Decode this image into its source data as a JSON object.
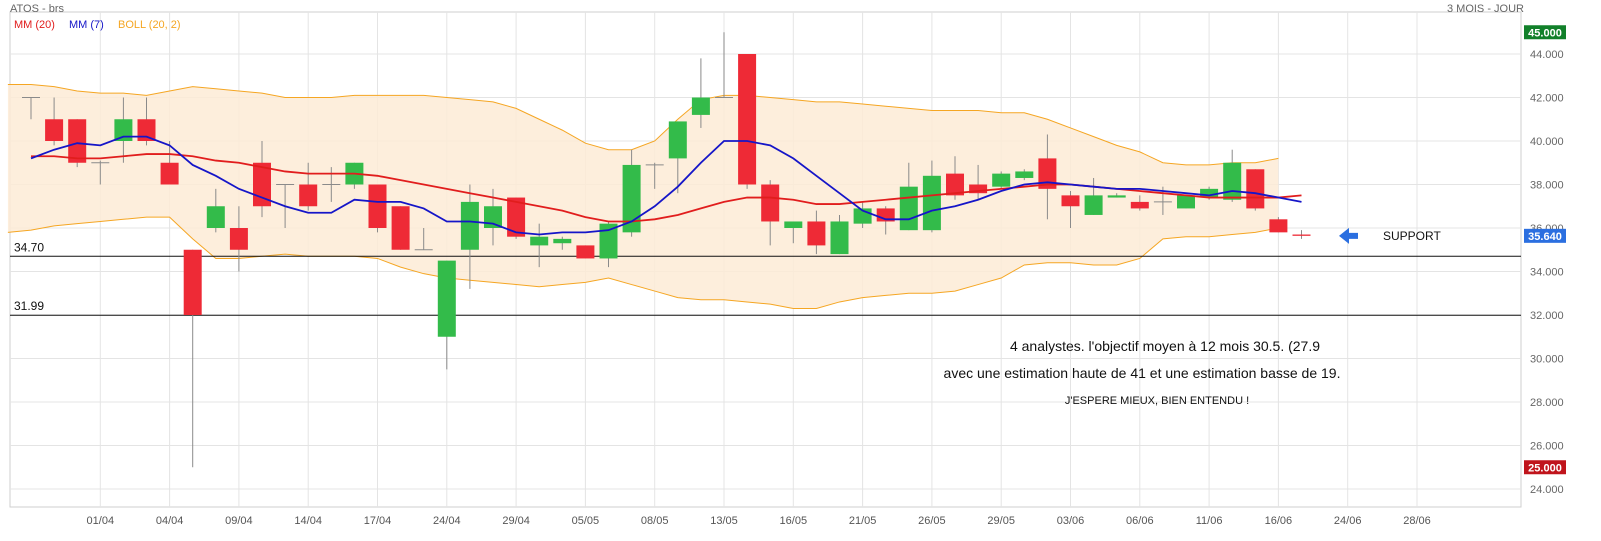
{
  "header": {
    "symbol": "ATOS - brs",
    "period": "3 MOIS - JOUR"
  },
  "legend": [
    {
      "label": "MM (20)",
      "color": "#e11d1d"
    },
    {
      "label": "MM (7)",
      "color": "#1515c8"
    },
    {
      "label": "BOLL (20, 2)",
      "color": "#f5a623"
    }
  ],
  "colors": {
    "up": "#33bb4a",
    "down": "#ee2a36",
    "band_fill": "#fdebd6",
    "band_line": "#f5a623",
    "ma20": "#e11d1d",
    "ma7": "#1515c8",
    "grid": "#e4e4e4",
    "high_badge": "#11802a",
    "low_badge": "#c0141c",
    "last_badge": "#2b6fe0",
    "arrow": "#2b6fe0"
  },
  "chart_data": {
    "type": "candlestick",
    "ylim": [
      23.2,
      46.0
    ],
    "y_ticks": [
      "24.000",
      "26.000",
      "28.000",
      "30.000",
      "32.000",
      "34.000",
      "36.000",
      "38.000",
      "40.000",
      "42.000",
      "44.000"
    ],
    "y_tick_values": [
      24,
      26,
      28,
      30,
      32,
      34,
      36,
      38,
      40,
      42,
      44
    ],
    "x_labels": [
      "01/04",
      "04/04",
      "09/04",
      "14/04",
      "17/04",
      "24/04",
      "29/04",
      "05/05",
      "08/05",
      "13/05",
      "16/05",
      "21/05",
      "26/05",
      "29/05",
      "03/06",
      "06/06",
      "11/06",
      "16/06",
      "24/06",
      "28/06"
    ],
    "x_label_index": [
      3,
      6,
      9,
      12,
      15,
      18,
      21,
      24,
      27,
      30,
      33,
      36,
      39,
      42,
      45,
      48,
      51,
      54,
      57,
      60
    ],
    "candles": [
      {
        "o": 42.0,
        "h": 42.0,
        "l": 41.0,
        "c": 42.0
      },
      {
        "o": 41.0,
        "h": 42.0,
        "l": 39.8,
        "c": 40.0
      },
      {
        "o": 41.0,
        "h": 41.0,
        "l": 38.8,
        "c": 39.0
      },
      {
        "o": 39.0,
        "h": 39.1,
        "l": 38.0,
        "c": 39.0
      },
      {
        "o": 40.0,
        "h": 42.0,
        "l": 39.0,
        "c": 41.0
      },
      {
        "o": 41.0,
        "h": 42.0,
        "l": 39.8,
        "c": 40.0
      },
      {
        "o": 39.0,
        "h": 40.0,
        "l": 38.0,
        "c": 38.0
      },
      {
        "o": 35.0,
        "h": 35.0,
        "l": 25.0,
        "c": 32.0
      },
      {
        "o": 36.0,
        "h": 37.8,
        "l": 35.8,
        "c": 37.0
      },
      {
        "o": 36.0,
        "h": 37.0,
        "l": 34.0,
        "c": 35.0
      },
      {
        "o": 39.0,
        "h": 40.0,
        "l": 36.5,
        "c": 37.0
      },
      {
        "o": 38.0,
        "h": 38.0,
        "l": 36.0,
        "c": 38.0
      },
      {
        "o": 38.0,
        "h": 39.0,
        "l": 36.8,
        "c": 37.0
      },
      {
        "o": 38.0,
        "h": 38.8,
        "l": 37.2,
        "c": 38.0
      },
      {
        "o": 38.0,
        "h": 39.0,
        "l": 37.8,
        "c": 39.0
      },
      {
        "o": 38.0,
        "h": 38.0,
        "l": 35.8,
        "c": 36.0
      },
      {
        "o": 37.0,
        "h": 37.0,
        "l": 35.0,
        "c": 35.0
      },
      {
        "o": 35.0,
        "h": 36.0,
        "l": 35.0,
        "c": 35.0
      },
      {
        "o": 31.0,
        "h": 34.5,
        "l": 29.5,
        "c": 34.5
      },
      {
        "o": 35.0,
        "h": 38.0,
        "l": 33.2,
        "c": 37.2
      },
      {
        "o": 36.0,
        "h": 37.8,
        "l": 35.2,
        "c": 37.0
      },
      {
        "o": 37.4,
        "h": 37.4,
        "l": 35.5,
        "c": 35.6
      },
      {
        "o": 35.2,
        "h": 36.2,
        "l": 34.2,
        "c": 35.6
      },
      {
        "o": 35.3,
        "h": 35.6,
        "l": 35.0,
        "c": 35.5
      },
      {
        "o": 35.2,
        "h": 35.2,
        "l": 34.6,
        "c": 34.6
      },
      {
        "o": 34.6,
        "h": 36.3,
        "l": 34.2,
        "c": 36.2
      },
      {
        "o": 35.8,
        "h": 39.6,
        "l": 35.6,
        "c": 38.9
      },
      {
        "o": 38.9,
        "h": 39.0,
        "l": 37.8,
        "c": 38.9
      },
      {
        "o": 39.2,
        "h": 40.9,
        "l": 37.6,
        "c": 40.9
      },
      {
        "o": 41.2,
        "h": 43.8,
        "l": 40.6,
        "c": 42.0
      },
      {
        "o": 42.0,
        "h": 45.0,
        "l": 42.0,
        "c": 42.0
      },
      {
        "o": 44.0,
        "h": 44.0,
        "l": 37.8,
        "c": 38.0
      },
      {
        "o": 38.0,
        "h": 38.2,
        "l": 35.2,
        "c": 36.3
      },
      {
        "o": 36.0,
        "h": 36.3,
        "l": 35.3,
        "c": 36.3
      },
      {
        "o": 36.3,
        "h": 36.8,
        "l": 34.8,
        "c": 35.2
      },
      {
        "o": 34.8,
        "h": 36.6,
        "l": 34.8,
        "c": 36.3
      },
      {
        "o": 36.2,
        "h": 37.2,
        "l": 36.0,
        "c": 36.9
      },
      {
        "o": 36.9,
        "h": 37.0,
        "l": 35.7,
        "c": 36.3
      },
      {
        "o": 35.9,
        "h": 39.0,
        "l": 35.9,
        "c": 37.9
      },
      {
        "o": 35.9,
        "h": 39.1,
        "l": 35.8,
        "c": 38.4
      },
      {
        "o": 38.5,
        "h": 39.3,
        "l": 37.3,
        "c": 37.5
      },
      {
        "o": 38.0,
        "h": 38.9,
        "l": 37.3,
        "c": 37.6
      },
      {
        "o": 37.9,
        "h": 38.6,
        "l": 37.8,
        "c": 38.5
      },
      {
        "o": 38.3,
        "h": 38.7,
        "l": 38.2,
        "c": 38.6
      },
      {
        "o": 39.2,
        "h": 40.3,
        "l": 36.4,
        "c": 37.8
      },
      {
        "o": 37.5,
        "h": 37.7,
        "l": 36.0,
        "c": 37.0
      },
      {
        "o": 36.6,
        "h": 38.3,
        "l": 36.6,
        "c": 37.5
      },
      {
        "o": 37.4,
        "h": 37.6,
        "l": 37.4,
        "c": 37.5
      },
      {
        "o": 37.2,
        "h": 37.5,
        "l": 36.8,
        "c": 36.9
      },
      {
        "o": 37.2,
        "h": 37.9,
        "l": 36.6,
        "c": 37.2
      },
      {
        "o": 36.9,
        "h": 37.5,
        "l": 36.9,
        "c": 37.5
      },
      {
        "o": 37.4,
        "h": 37.9,
        "l": 37.3,
        "c": 37.8
      },
      {
        "o": 37.3,
        "h": 39.6,
        "l": 37.2,
        "c": 39.0
      },
      {
        "o": 38.7,
        "h": 38.7,
        "l": 36.8,
        "c": 36.9
      },
      {
        "o": 36.4,
        "h": 36.5,
        "l": 35.8,
        "c": 35.8
      },
      {
        "o": 35.7,
        "h": 35.9,
        "l": 35.5,
        "c": 35.64
      }
    ],
    "series": [
      {
        "name": "MM (20)",
        "values": [
          39.3,
          39.3,
          39.2,
          39.2,
          39.3,
          39.4,
          39.4,
          39.3,
          39.1,
          39.0,
          38.8,
          38.6,
          38.5,
          38.5,
          38.5,
          38.4,
          38.2,
          38.0,
          37.8,
          37.6,
          37.4,
          37.2,
          37.0,
          36.8,
          36.5,
          36.3,
          36.3,
          36.4,
          36.6,
          36.9,
          37.2,
          37.4,
          37.4,
          37.3,
          37.1,
          37.1,
          37.2,
          37.3,
          37.4,
          37.5,
          37.6,
          37.7,
          37.8,
          37.9,
          38.0,
          38.0,
          37.9,
          37.8,
          37.7,
          37.6,
          37.5,
          37.4,
          37.4,
          37.4,
          37.4,
          37.5
        ]
      },
      {
        "name": "MM (7)",
        "values": [
          39.2,
          39.6,
          39.9,
          39.8,
          40.2,
          40.2,
          39.8,
          38.9,
          38.4,
          37.8,
          37.4,
          37.0,
          36.7,
          36.7,
          37.3,
          37.2,
          37.2,
          36.9,
          36.3,
          36.3,
          36.2,
          35.8,
          35.7,
          35.8,
          35.8,
          35.9,
          36.3,
          37.0,
          37.9,
          39.0,
          40.0,
          40.0,
          39.8,
          39.2,
          38.4,
          37.6,
          36.8,
          36.4,
          36.4,
          36.8,
          37.0,
          37.3,
          37.7,
          38.0,
          38.1,
          38.0,
          37.9,
          37.8,
          37.8,
          37.7,
          37.6,
          37.5,
          37.7,
          37.6,
          37.4,
          37.2
        ]
      }
    ],
    "bollinger": {
      "name": "BOLL (20, 2)",
      "upper": [
        42.6,
        42.6,
        42.5,
        42.3,
        42.2,
        42.2,
        42.1,
        42.3,
        42.5,
        42.4,
        42.3,
        42.2,
        42.0,
        42.0,
        42.0,
        42.1,
        42.1,
        42.1,
        42.1,
        42.0,
        41.9,
        41.8,
        41.5,
        41.0,
        40.5,
        39.9,
        39.6,
        39.6,
        40.0,
        41.0,
        41.9,
        42.1,
        42.1,
        42.0,
        41.9,
        41.8,
        41.8,
        41.7,
        41.6,
        41.5,
        41.4,
        41.4,
        41.4,
        41.3,
        41.3,
        41.0,
        40.6,
        40.2,
        39.8,
        39.5,
        39.0,
        38.9,
        38.9,
        39.0,
        39.0,
        39.2
      ],
      "lower": [
        35.8,
        35.9,
        36.1,
        36.2,
        36.3,
        36.4,
        36.5,
        36.5,
        35.5,
        34.6,
        34.6,
        34.7,
        34.8,
        34.7,
        34.7,
        34.7,
        34.6,
        34.2,
        33.9,
        33.7,
        33.6,
        33.5,
        33.4,
        33.3,
        33.4,
        33.5,
        33.7,
        33.4,
        33.1,
        32.8,
        32.7,
        32.7,
        32.6,
        32.5,
        32.3,
        32.3,
        32.6,
        32.8,
        32.9,
        33.0,
        33.0,
        33.1,
        33.4,
        33.7,
        34.3,
        34.4,
        34.4,
        34.3,
        34.3,
        34.6,
        35.5,
        35.6,
        35.6,
        35.7,
        35.8,
        36.0
      ]
    },
    "levels": [
      {
        "label": "34.70",
        "value": 34.7
      },
      {
        "label": "31.99",
        "value": 31.99
      }
    ],
    "badges": [
      {
        "label": "45.000",
        "value": 45.0,
        "role": "high"
      },
      {
        "label": "35.640",
        "value": 35.64,
        "role": "last"
      },
      {
        "label": "25.000",
        "value": 25.0,
        "role": "low"
      }
    ],
    "annotations": {
      "support_label": "SUPPORT",
      "note_line1": "4 analystes. l'objectif moyen à 12 mois 30.5. (27.9",
      "note_line2": "avec une estimation haute de 41  et une estimation basse de 19.",
      "note_line3": "J'ESPERE MIEUX, BIEN ENTENDU !"
    },
    "grid": true
  }
}
